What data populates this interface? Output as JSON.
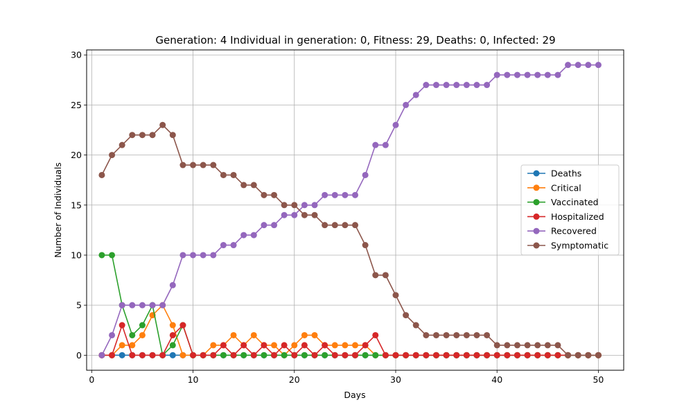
{
  "chart_data": {
    "type": "line",
    "title": "Generation: 4 Individual in generation: 0, Fitness: 29, Deaths: 0, Infected: 29",
    "xlabel": "Days",
    "ylabel": "Number of Individuals",
    "xlim": [
      -0.5,
      52.5
    ],
    "ylim": [
      -1.5,
      30.5
    ],
    "xticks": [
      0,
      10,
      20,
      30,
      40,
      50
    ],
    "yticks": [
      0,
      5,
      10,
      15,
      20,
      25,
      30
    ],
    "grid": true,
    "legend_position": "center-right",
    "x": [
      1,
      2,
      3,
      4,
      5,
      6,
      7,
      8,
      9,
      10,
      11,
      12,
      13,
      14,
      15,
      16,
      17,
      18,
      19,
      20,
      21,
      22,
      23,
      24,
      25,
      26,
      27,
      28,
      29,
      30,
      31,
      32,
      33,
      34,
      35,
      36,
      37,
      38,
      39,
      40,
      41,
      42,
      43,
      44,
      45,
      46,
      47,
      48,
      49,
      50
    ],
    "series": [
      {
        "name": "Deaths",
        "color": "#1f77b4",
        "values": [
          0,
          0,
          0,
          0,
          0,
          0,
          0,
          0,
          0,
          0,
          0,
          0,
          0,
          0,
          0,
          0,
          0,
          0,
          0,
          0,
          0,
          0,
          0,
          0,
          0,
          0,
          0,
          0,
          0,
          0,
          0,
          0,
          0,
          0,
          0,
          0,
          0,
          0,
          0,
          0,
          0,
          0,
          0,
          0,
          0,
          0,
          0,
          0,
          0,
          0
        ]
      },
      {
        "name": "Critical",
        "color": "#ff7f0e",
        "values": [
          0,
          0,
          1,
          1,
          2,
          4,
          5,
          3,
          0,
          0,
          0,
          1,
          1,
          2,
          1,
          2,
          1,
          1,
          0,
          1,
          2,
          2,
          1,
          1,
          1,
          1,
          1,
          0,
          0,
          0,
          0,
          0,
          0,
          0,
          0,
          0,
          0,
          0,
          0,
          0,
          0,
          0,
          0,
          0,
          0,
          0,
          0,
          0,
          0,
          0
        ]
      },
      {
        "name": "Vaccinated",
        "color": "#2ca02c",
        "values": [
          10,
          10,
          5,
          2,
          3,
          5,
          0,
          1,
          3,
          0,
          0,
          0,
          0,
          0,
          0,
          0,
          0,
          0,
          0,
          0,
          0,
          0,
          0,
          0,
          0,
          0,
          0,
          0,
          0,
          0,
          0,
          0,
          0,
          0,
          0,
          0,
          0,
          0,
          0,
          0,
          0,
          0,
          0,
          0,
          0,
          0,
          0,
          0,
          0,
          0
        ]
      },
      {
        "name": "Hospitalized",
        "color": "#d62728",
        "values": [
          0,
          0,
          3,
          0,
          0,
          0,
          0,
          2,
          3,
          0,
          0,
          0,
          1,
          0,
          1,
          0,
          1,
          0,
          1,
          0,
          1,
          0,
          1,
          0,
          0,
          0,
          1,
          2,
          0,
          0,
          0,
          0,
          0,
          0,
          0,
          0,
          0,
          0,
          0,
          0,
          0,
          0,
          0,
          0,
          0,
          0,
          0,
          0,
          0,
          0
        ]
      },
      {
        "name": "Recovered",
        "color": "#9467bd",
        "values": [
          0,
          2,
          5,
          5,
          5,
          5,
          5,
          7,
          10,
          10,
          10,
          10,
          11,
          11,
          12,
          12,
          13,
          13,
          14,
          14,
          15,
          15,
          16,
          16,
          16,
          16,
          18,
          21,
          21,
          23,
          25,
          26,
          27,
          27,
          27,
          27,
          27,
          27,
          27,
          28,
          28,
          28,
          28,
          28,
          28,
          28,
          29,
          29,
          29,
          29
        ]
      },
      {
        "name": "Symptomatic",
        "color": "#8c564b",
        "values": [
          18,
          20,
          21,
          22,
          22,
          22,
          23,
          22,
          19,
          19,
          19,
          19,
          18,
          18,
          17,
          17,
          16,
          16,
          15,
          15,
          14,
          14,
          13,
          13,
          13,
          13,
          11,
          8,
          8,
          6,
          4,
          3,
          2,
          2,
          2,
          2,
          2,
          2,
          2,
          1,
          1,
          1,
          1,
          1,
          1,
          1,
          0,
          0,
          0,
          0
        ]
      }
    ]
  }
}
